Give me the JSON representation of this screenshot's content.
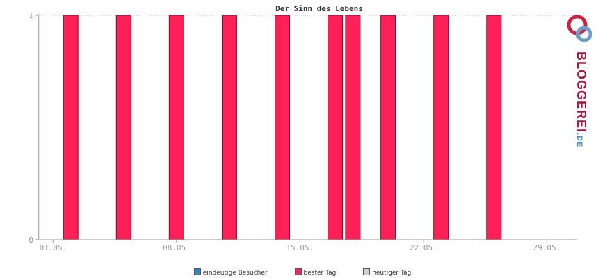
{
  "chart_data": {
    "type": "bar",
    "title": "Der Sinn des Lebens",
    "x_tick_labels": [
      "01.05.",
      "08.05.",
      "15.05.",
      "22.05.",
      "29.05."
    ],
    "y_tick_labels": [
      "0",
      "1"
    ],
    "ylim": [
      0,
      1
    ],
    "grid": true,
    "series": [
      {
        "name": "bester Tag",
        "color": "#ff2057",
        "bars": [
          {
            "day": 2,
            "value": 1
          },
          {
            "day": 5,
            "value": 1
          },
          {
            "day": 8,
            "value": 1
          },
          {
            "day": 11,
            "value": 1
          },
          {
            "day": 14,
            "value": 1
          },
          {
            "day": 17,
            "value": 1
          },
          {
            "day": 18,
            "value": 1
          },
          {
            "day": 20,
            "value": 1
          },
          {
            "day": 23,
            "value": 1
          },
          {
            "day": 26,
            "value": 1
          }
        ]
      }
    ],
    "legend_position": "bottom-center",
    "legend": [
      {
        "label": "eindeutige Besucher",
        "color": "#3a86b9"
      },
      {
        "label": "bester Tag",
        "color": "#ff2057"
      },
      {
        "label": "heutiger Tag",
        "color": "#d0d0d0"
      }
    ]
  },
  "logo": {
    "text_main": "BLOGGEREI",
    "text_suffix": ".DE",
    "color_main": "#a11b3c",
    "color_suffix": "#4a8fbf",
    "icon": "bloggerei-link-logo-icon"
  }
}
